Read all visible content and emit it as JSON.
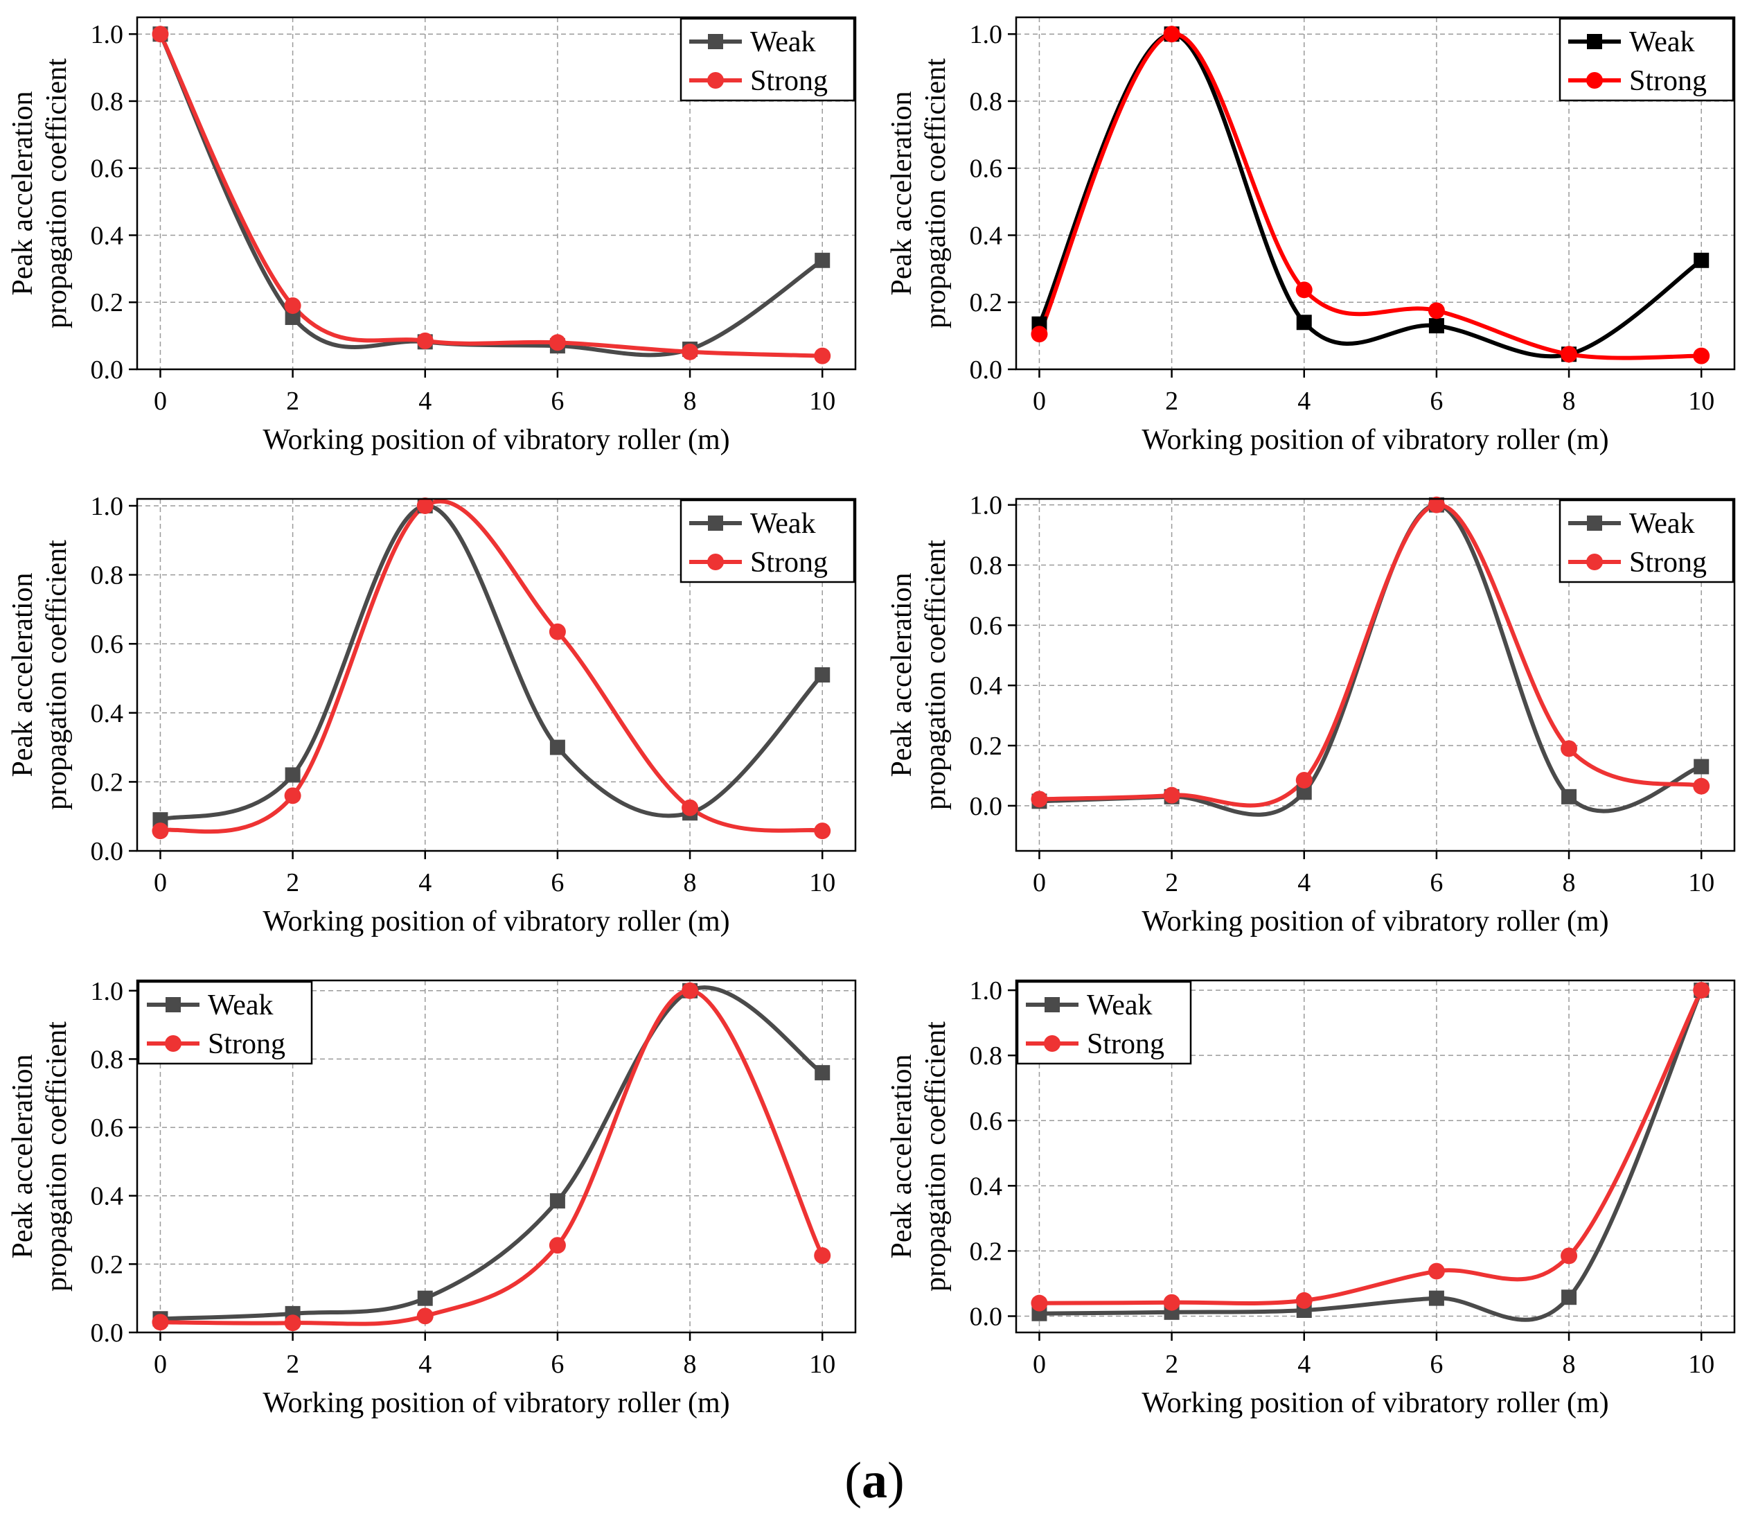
{
  "figure": {
    "caption_open": "(",
    "caption_letter": "a",
    "caption_close": ")"
  },
  "chart_data": [
    {
      "type": "line",
      "panel": "top-left",
      "x": [
        0,
        2,
        4,
        6,
        8,
        10
      ],
      "xlabel": "Working position of vibratory roller (m)",
      "ylabel_line1": "Peak acceleration",
      "ylabel_line2": "propagation coefficient",
      "xlim": [
        -0.35,
        10.5
      ],
      "ylim": [
        0,
        1.05
      ],
      "xticks": [
        0,
        2,
        4,
        6,
        8,
        10
      ],
      "yticks": [
        0.0,
        0.2,
        0.4,
        0.6,
        0.8,
        1.0
      ],
      "grid": true,
      "legend": "top-right",
      "series": [
        {
          "name": "Weak",
          "color": "#4a4a4a",
          "marker": "square",
          "values": [
            1.0,
            0.155,
            0.082,
            0.07,
            0.06,
            0.325
          ]
        },
        {
          "name": "Strong",
          "color": "#ee3333",
          "marker": "circle",
          "values": [
            1.0,
            0.19,
            0.085,
            0.08,
            0.052,
            0.04
          ]
        }
      ]
    },
    {
      "type": "line",
      "panel": "top-right",
      "x": [
        0,
        2,
        4,
        6,
        8,
        10
      ],
      "xlabel": "Working position of vibratory roller (m)",
      "ylabel_line1": "Peak acceleration",
      "ylabel_line2": "propagation coefficient",
      "xlim": [
        -0.35,
        10.5
      ],
      "ylim": [
        0,
        1.05
      ],
      "xticks": [
        0,
        2,
        4,
        6,
        8,
        10
      ],
      "yticks": [
        0.0,
        0.2,
        0.4,
        0.6,
        0.8,
        1.0
      ],
      "grid": true,
      "legend": "top-right",
      "series": [
        {
          "name": "Weak",
          "color": "#000000",
          "marker": "square",
          "values": [
            0.135,
            1.0,
            0.14,
            0.13,
            0.045,
            0.325
          ]
        },
        {
          "name": "Strong",
          "color": "#ff0000",
          "marker": "circle",
          "values": [
            0.105,
            1.0,
            0.237,
            0.175,
            0.045,
            0.04
          ]
        }
      ]
    },
    {
      "type": "line",
      "panel": "middle-left",
      "x": [
        0,
        2,
        4,
        6,
        8,
        10
      ],
      "xlabel": "Working position of vibratory roller (m)",
      "ylabel_line1": "Peak acceleration",
      "ylabel_line2": "propagation coefficient",
      "xlim": [
        -0.35,
        10.5
      ],
      "ylim": [
        0,
        1.02
      ],
      "xticks": [
        0,
        2,
        4,
        6,
        8,
        10
      ],
      "yticks": [
        0.0,
        0.2,
        0.4,
        0.6,
        0.8,
        1.0
      ],
      "grid": true,
      "legend": "top-right",
      "series": [
        {
          "name": "Weak",
          "color": "#4a4a4a",
          "marker": "square",
          "values": [
            0.09,
            0.22,
            1.0,
            0.3,
            0.11,
            0.51
          ]
        },
        {
          "name": "Strong",
          "color": "#ee3333",
          "marker": "circle",
          "values": [
            0.058,
            0.16,
            1.0,
            0.635,
            0.125,
            0.058
          ]
        }
      ]
    },
    {
      "type": "line",
      "panel": "middle-right",
      "x": [
        0,
        2,
        4,
        6,
        8,
        10
      ],
      "xlabel": "Working position of vibratory roller (m)",
      "ylabel_line1": "Peak acceleration",
      "ylabel_line2": "propagation coefficient",
      "xlim": [
        -0.35,
        10.5
      ],
      "ylim": [
        -0.15,
        1.02
      ],
      "xticks": [
        0,
        2,
        4,
        6,
        8,
        10
      ],
      "yticks": [
        0.0,
        0.2,
        0.4,
        0.6,
        0.8,
        1.0
      ],
      "grid": true,
      "legend": "top-right",
      "series": [
        {
          "name": "Weak",
          "color": "#4a4a4a",
          "marker": "square",
          "values": [
            0.015,
            0.03,
            0.045,
            1.0,
            0.03,
            0.13
          ]
        },
        {
          "name": "Strong",
          "color": "#ee3333",
          "marker": "circle",
          "values": [
            0.022,
            0.035,
            0.085,
            1.0,
            0.19,
            0.065
          ]
        }
      ]
    },
    {
      "type": "line",
      "panel": "bottom-left",
      "x": [
        0,
        2,
        4,
        6,
        8,
        10
      ],
      "xlabel": "Working position of vibratory roller (m)",
      "ylabel_line1": "Peak acceleration",
      "ylabel_line2": "propagation coefficient",
      "xlim": [
        -0.35,
        10.5
      ],
      "ylim": [
        0,
        1.03
      ],
      "xticks": [
        0,
        2,
        4,
        6,
        8,
        10
      ],
      "yticks": [
        0.0,
        0.2,
        0.4,
        0.6,
        0.8,
        1.0
      ],
      "grid": true,
      "legend": "top-left",
      "series": [
        {
          "name": "Weak",
          "color": "#4a4a4a",
          "marker": "square",
          "values": [
            0.04,
            0.055,
            0.1,
            0.385,
            1.0,
            0.76
          ]
        },
        {
          "name": "Strong",
          "color": "#ee3333",
          "marker": "circle",
          "values": [
            0.03,
            0.028,
            0.048,
            0.255,
            1.0,
            0.225
          ]
        }
      ]
    },
    {
      "type": "line",
      "panel": "bottom-right",
      "x": [
        0,
        2,
        4,
        6,
        8,
        10
      ],
      "xlabel": "Working position of vibratory roller (m)",
      "ylabel_line1": "Peak acceleration",
      "ylabel_line2": "propagation coefficient",
      "xlim": [
        -0.35,
        10.5
      ],
      "ylim": [
        -0.05,
        1.03
      ],
      "xticks": [
        0,
        2,
        4,
        6,
        8,
        10
      ],
      "yticks": [
        0.0,
        0.2,
        0.4,
        0.6,
        0.8,
        1.0
      ],
      "grid": true,
      "legend": "top-left",
      "series": [
        {
          "name": "Weak",
          "color": "#4a4a4a",
          "marker": "square",
          "values": [
            0.008,
            0.012,
            0.018,
            0.055,
            0.058,
            1.0
          ]
        },
        {
          "name": "Strong",
          "color": "#ee3333",
          "marker": "circle",
          "values": [
            0.04,
            0.042,
            0.048,
            0.138,
            0.185,
            1.0
          ]
        }
      ]
    }
  ]
}
